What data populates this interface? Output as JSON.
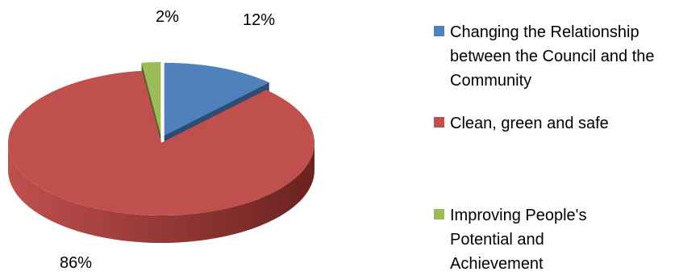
{
  "chart_data": {
    "type": "pie",
    "style": "3d-exploded",
    "slices": [
      {
        "label": "Changing the Relationship between the Council and the Community",
        "value": 12,
        "display": "12%",
        "color": "#4f81bd",
        "side_color": "#2c4d75"
      },
      {
        "label": "Clean, green and safe",
        "value": 86,
        "display": "86%",
        "color": "#c0504d",
        "side_color": "#6b2220"
      },
      {
        "label": "Improving People's Potential and Achievement",
        "value": 2,
        "display": "2%",
        "color": "#9bbb59",
        "side_color": "#4f6228"
      }
    ],
    "legend_position": "right"
  }
}
